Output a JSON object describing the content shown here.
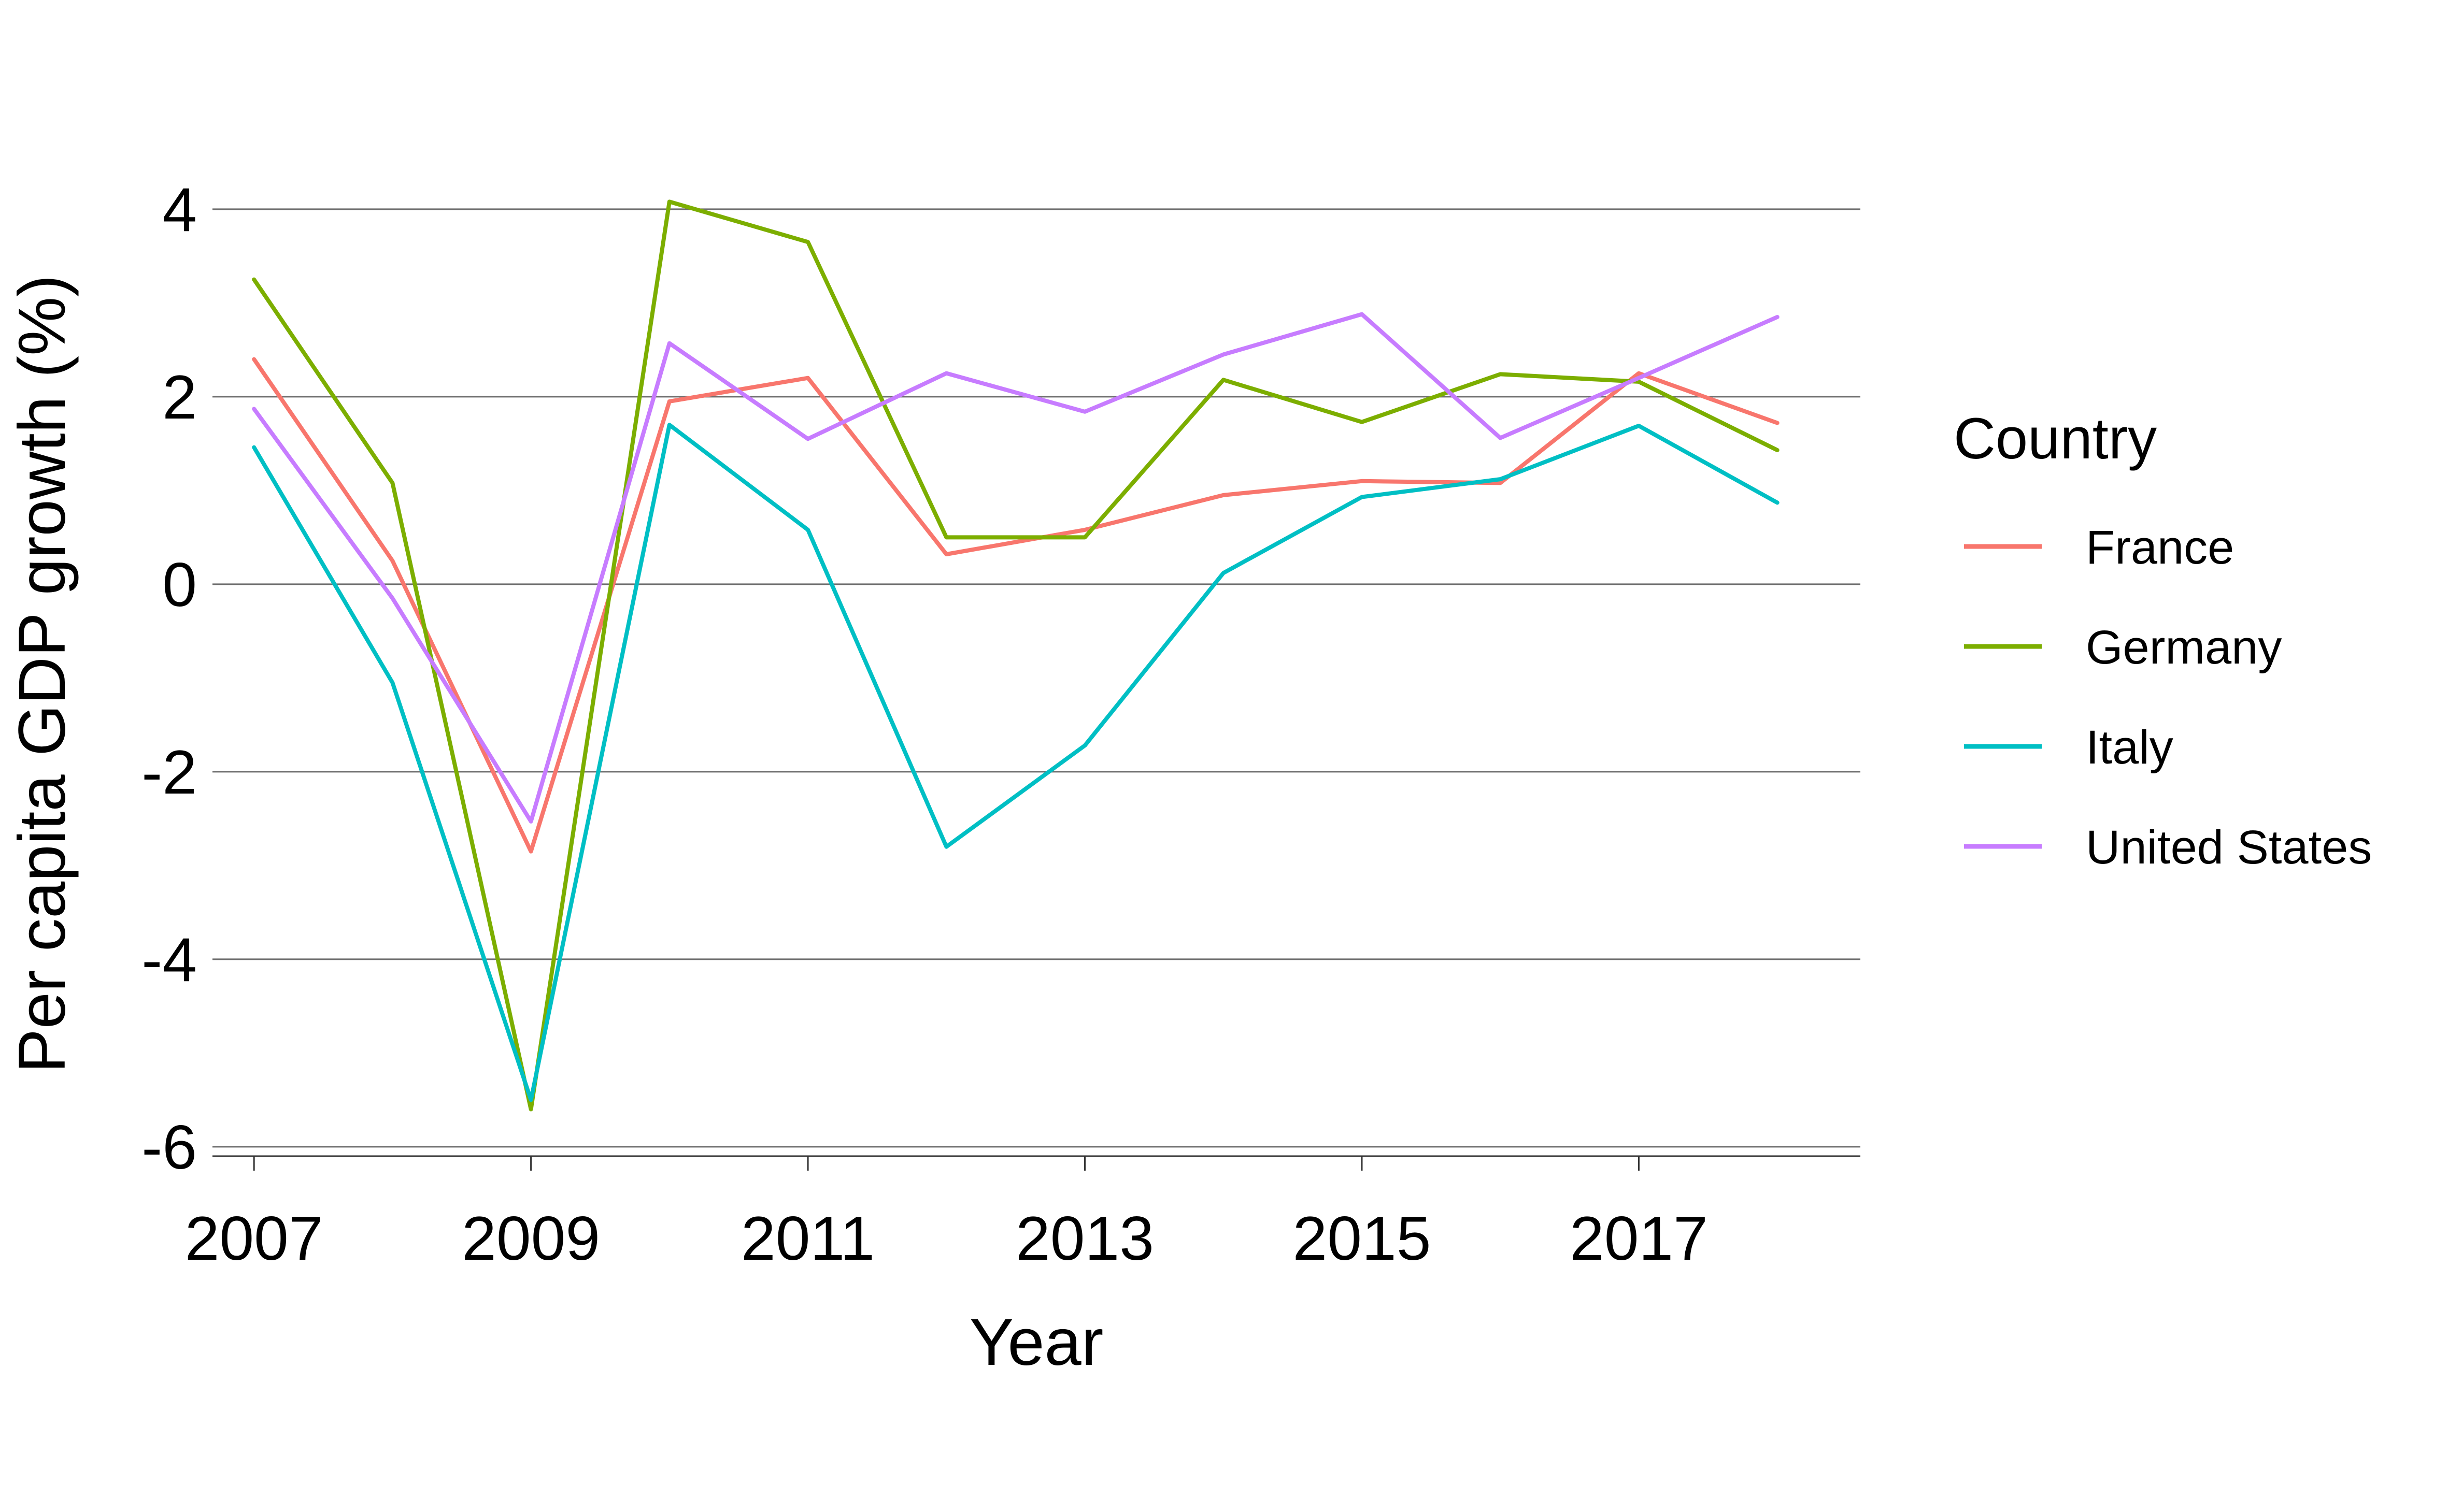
{
  "chart_data": {
    "type": "line",
    "title": "",
    "xlabel": "Year",
    "ylabel": "Per capita GDP growth (%)",
    "xlim": [
      2006.7,
      2018.6
    ],
    "ylim": [
      -6.1,
      4.85
    ],
    "x": [
      2007,
      2008,
      2009,
      2010,
      2011,
      2012,
      2013,
      2014,
      2015,
      2016,
      2017,
      2018
    ],
    "x_ticks": [
      2007,
      2009,
      2011,
      2013,
      2015,
      2017
    ],
    "x_tick_labels": [
      "2007",
      "2009",
      "2011",
      "2013",
      "2015",
      "2017"
    ],
    "y_ticks": [
      -6,
      -4,
      -2,
      0,
      2,
      4
    ],
    "y_tick_labels": [
      "-6",
      "-4",
      "-2",
      "0",
      "2",
      "4"
    ],
    "grid": true,
    "legend": {
      "title": "Country",
      "position": "right"
    },
    "series": [
      {
        "name": "France",
        "color": "#F8766D",
        "values": [
          2.4,
          0.25,
          -2.85,
          1.95,
          2.2,
          0.32,
          0.58,
          0.95,
          1.1,
          1.08,
          2.25,
          1.72
        ]
      },
      {
        "name": "Germany",
        "color": "#7CAE00",
        "values": [
          3.25,
          1.08,
          -5.6,
          4.08,
          3.65,
          0.5,
          0.5,
          2.18,
          1.73,
          2.24,
          2.16,
          1.43
        ]
      },
      {
        "name": "Italy",
        "color": "#00BFC4",
        "values": [
          1.46,
          -1.05,
          -5.5,
          1.7,
          0.58,
          -2.8,
          -1.72,
          0.12,
          0.93,
          1.12,
          1.69,
          0.87
        ]
      },
      {
        "name": "United States",
        "color": "#C77CFF",
        "values": [
          1.87,
          -0.15,
          -2.53,
          2.57,
          1.55,
          2.25,
          1.84,
          2.45,
          2.88,
          1.56,
          2.2,
          2.85
        ]
      }
    ]
  }
}
